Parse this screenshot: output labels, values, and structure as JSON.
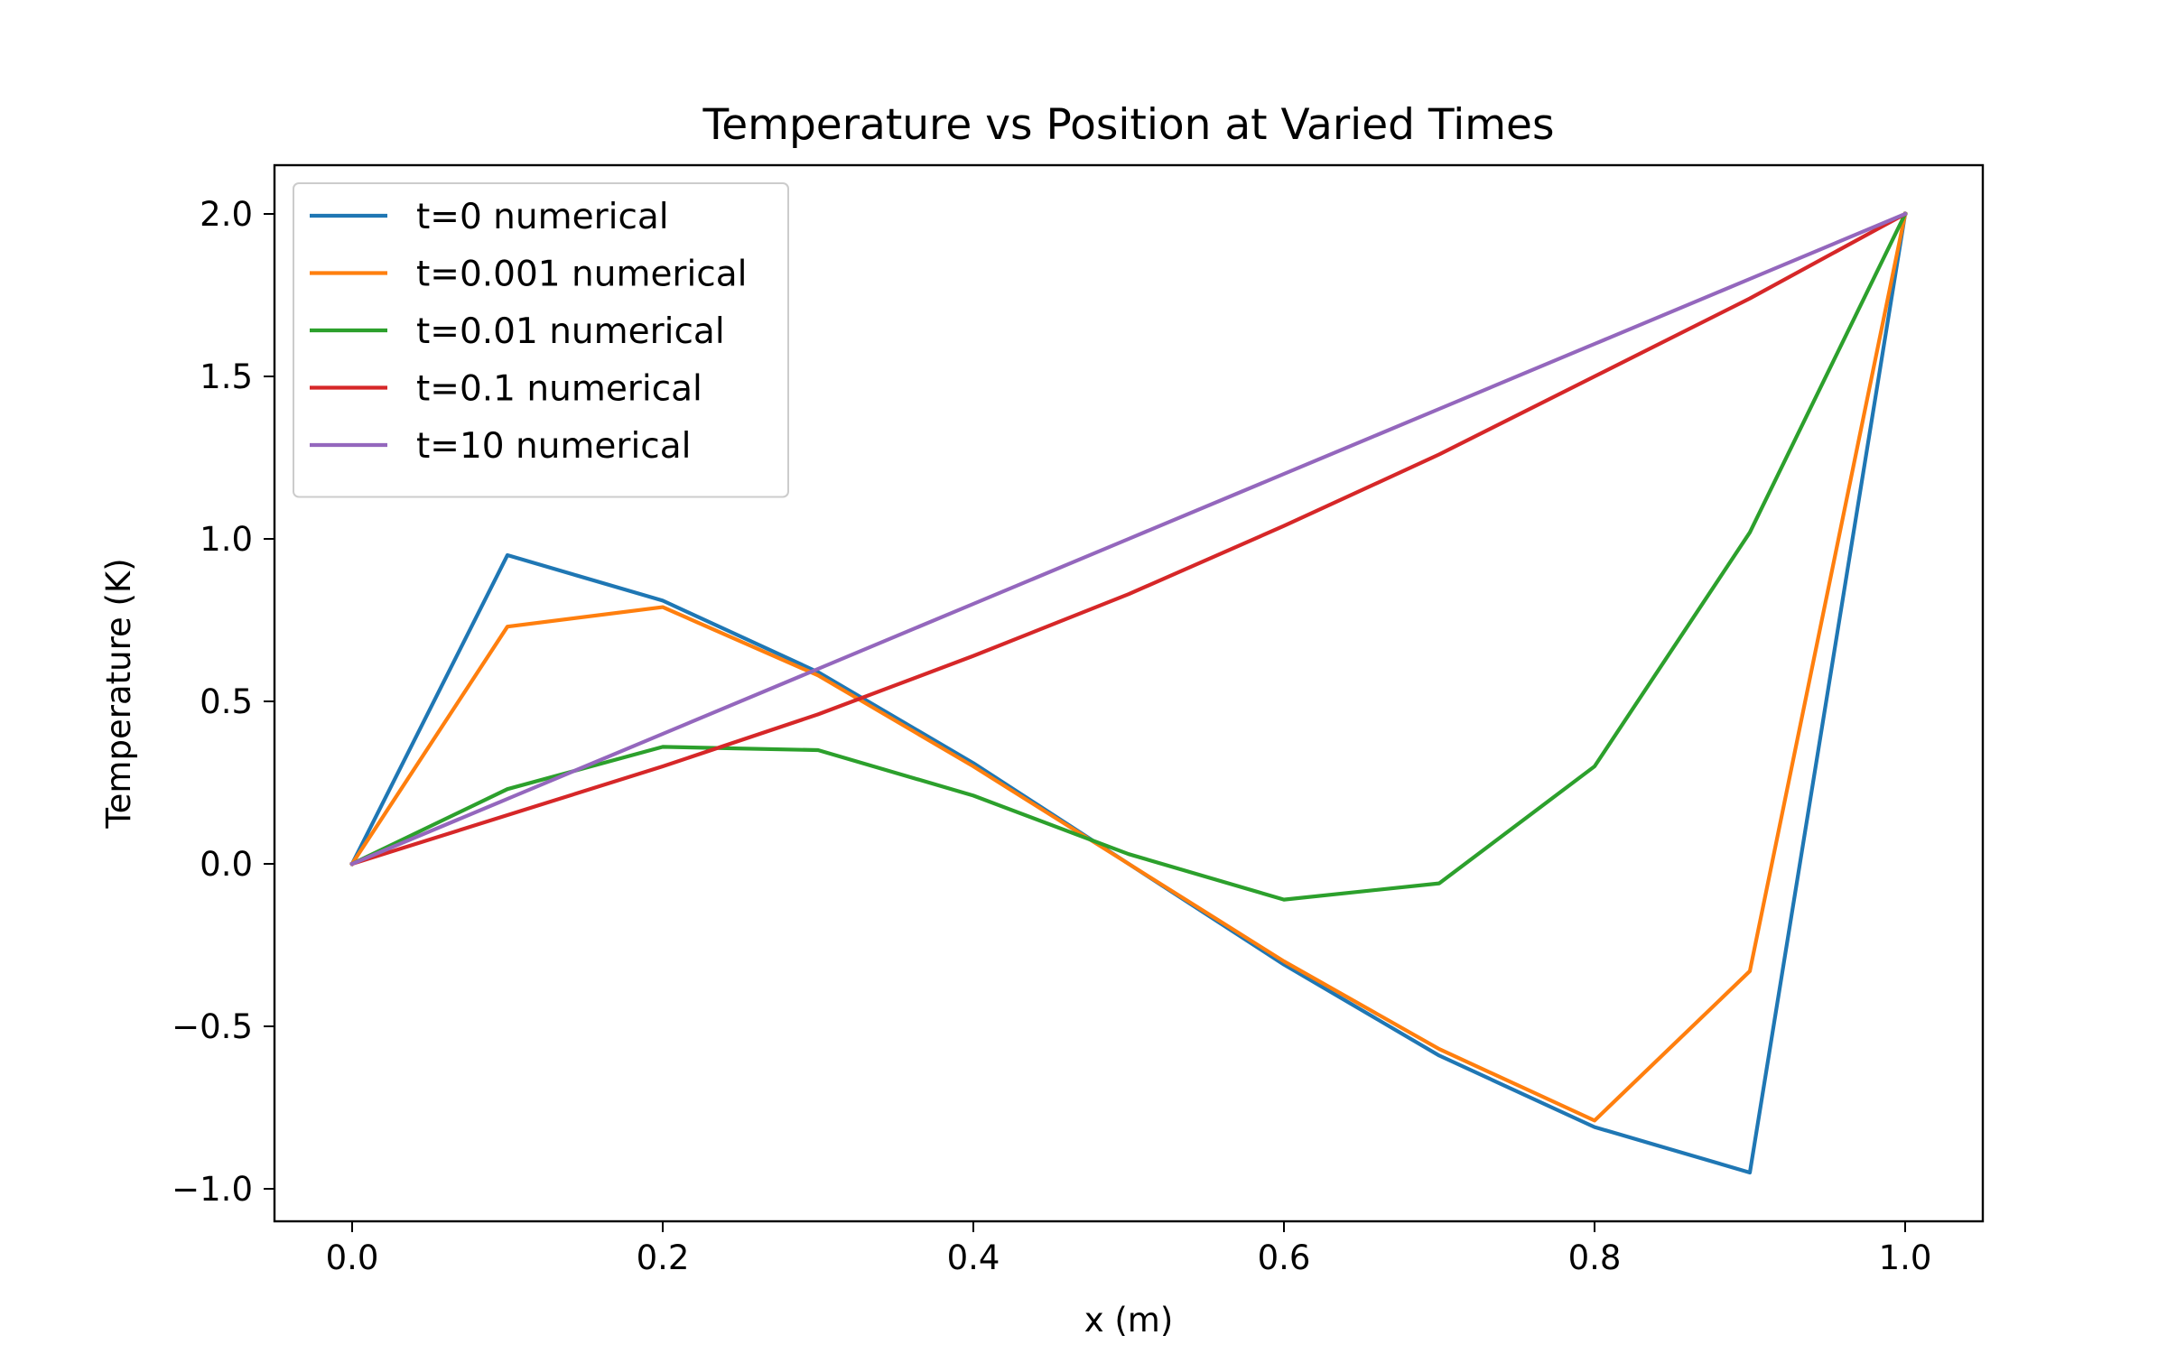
{
  "chart_data": {
    "type": "line",
    "title": "Temperature vs Position at Varied Times",
    "xlabel": "x (m)",
    "ylabel": "Temperature (K)",
    "xlim": [
      -0.05,
      1.05
    ],
    "ylim": [
      -1.1,
      2.15
    ],
    "xticks": [
      0.0,
      0.2,
      0.4,
      0.6,
      0.8,
      1.0
    ],
    "xtick_labels": [
      "0.0",
      "0.2",
      "0.4",
      "0.6",
      "0.8",
      "1.0"
    ],
    "yticks": [
      -1.0,
      -0.5,
      0.0,
      0.5,
      1.0,
      1.5,
      2.0
    ],
    "ytick_labels": [
      "−1.0",
      "−0.5",
      "0.0",
      "0.5",
      "1.0",
      "1.5",
      "2.0"
    ],
    "grid": false,
    "legend_position": "top-left",
    "x": [
      0.0,
      0.1,
      0.2,
      0.3,
      0.4,
      0.5,
      0.6,
      0.7,
      0.8,
      0.9,
      1.0
    ],
    "series": [
      {
        "name": "t=0 numerical",
        "color": "#1f77b4",
        "values": [
          0.0,
          0.95,
          0.81,
          0.59,
          0.31,
          0.0,
          -0.31,
          -0.59,
          -0.81,
          -0.95,
          2.0
        ]
      },
      {
        "name": "t=0.001 numerical",
        "color": "#ff7f0e",
        "values": [
          0.0,
          0.73,
          0.79,
          0.58,
          0.3,
          0.0,
          -0.3,
          -0.57,
          -0.79,
          -0.33,
          2.0
        ]
      },
      {
        "name": "t=0.01 numerical",
        "color": "#2ca02c",
        "values": [
          0.0,
          0.23,
          0.36,
          0.35,
          0.21,
          0.03,
          -0.11,
          -0.06,
          0.3,
          1.02,
          2.0
        ]
      },
      {
        "name": "t=0.1 numerical",
        "color": "#d62728",
        "values": [
          0.0,
          0.15,
          0.3,
          0.46,
          0.64,
          0.83,
          1.04,
          1.26,
          1.5,
          1.74,
          2.0
        ]
      },
      {
        "name": "t=10 numerical",
        "color": "#9467bd",
        "values": [
          0.0,
          0.2,
          0.4,
          0.6,
          0.8,
          1.0,
          1.2,
          1.4,
          1.6,
          1.8,
          2.0
        ]
      }
    ]
  }
}
